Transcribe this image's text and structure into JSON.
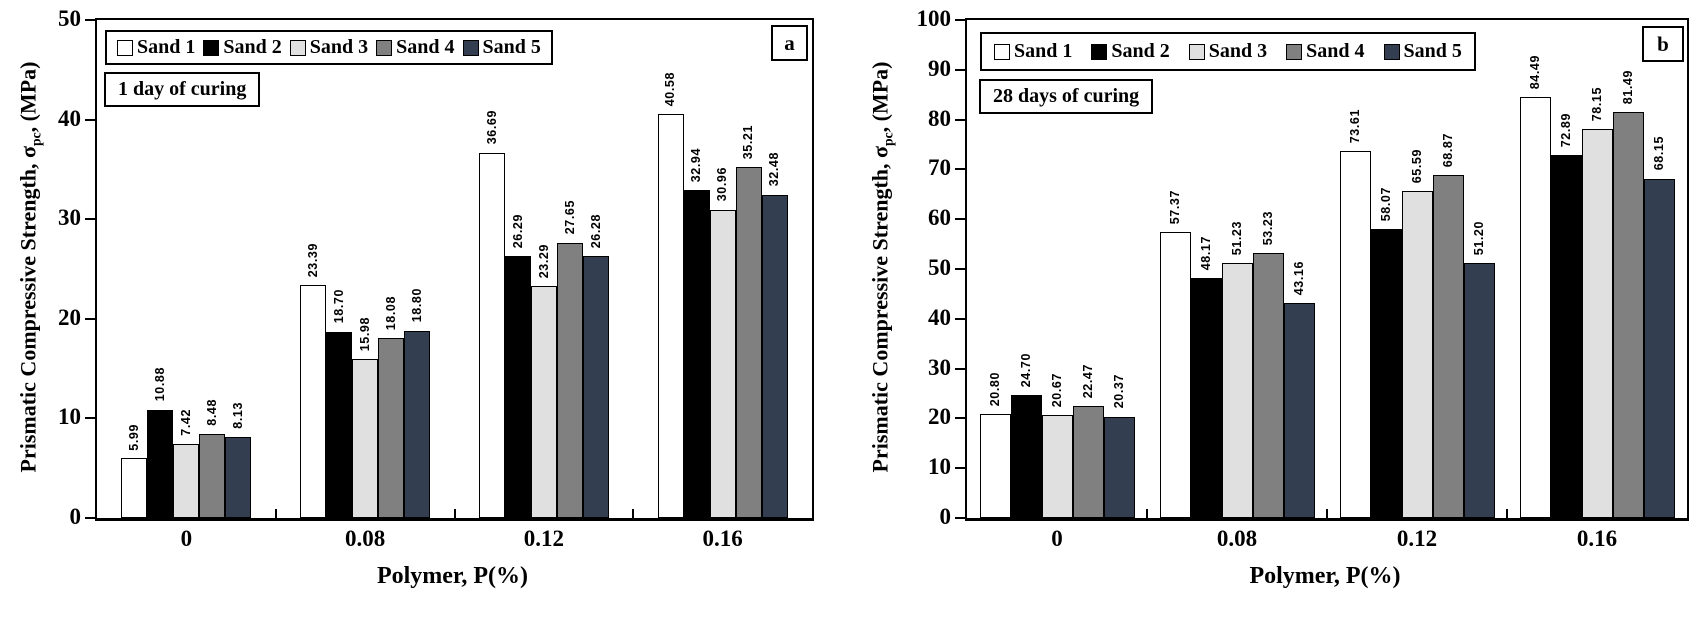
{
  "colors": {
    "sand1": "#ffffff",
    "sand2": "#000000",
    "sand3": "#e0e0e0",
    "sand4": "#808080",
    "sand5": "#333f50",
    "axis": "#000000",
    "background": "#ffffff"
  },
  "chart_data": [
    {
      "type": "bar",
      "panel_label": "a",
      "annotation": "1 day of curing",
      "xlabel": "Polymer, P(%)",
      "ylabel_full": "Prismatic Compressive Strength, σpc, (MPa)",
      "ylabel_pre": "Prismatic Compressive Strength, σ",
      "ylabel_sub": "pc",
      "ylabel_post": ", (MPa)",
      "categories": [
        "0",
        "0.08",
        "0.12",
        "0.16"
      ],
      "ylim": [
        0,
        50
      ],
      "yticks": [
        0,
        10,
        20,
        30,
        40,
        50
      ],
      "grid": false,
      "legend_position": "top-left",
      "value_label_decimals": 2,
      "series": [
        {
          "name": "Sand 1",
          "color_key": "sand1",
          "values": [
            5.99,
            23.39,
            36.69,
            40.58
          ]
        },
        {
          "name": "Sand 2",
          "color_key": "sand2",
          "values": [
            10.88,
            18.7,
            26.29,
            32.94
          ]
        },
        {
          "name": "Sand 3",
          "color_key": "sand3",
          "values": [
            7.42,
            15.98,
            23.29,
            30.96
          ]
        },
        {
          "name": "Sand 4",
          "color_key": "sand4",
          "values": [
            8.48,
            18.08,
            27.65,
            35.21
          ]
        },
        {
          "name": "Sand 5",
          "color_key": "sand5",
          "values": [
            8.13,
            18.8,
            26.28,
            32.48
          ]
        }
      ]
    },
    {
      "type": "bar",
      "panel_label": "b",
      "annotation": "28 days of curing",
      "xlabel": "Polymer, P(%)",
      "ylabel_full": "Prismatic Compressive Strength, σpc, (MPa)",
      "ylabel_pre": "Prismatic Compressive Strength, σ",
      "ylabel_sub": "pc",
      "ylabel_post": ", (MPa)",
      "categories": [
        "0",
        "0.08",
        "0.12",
        "0.16"
      ],
      "ylim": [
        0,
        100
      ],
      "yticks": [
        0,
        10,
        20,
        30,
        40,
        50,
        60,
        70,
        80,
        90,
        100
      ],
      "grid": false,
      "legend_position": "top-left",
      "value_label_decimals": 2,
      "series": [
        {
          "name": "Sand 1",
          "color_key": "sand1",
          "values": [
            20.8,
            57.37,
            73.61,
            84.49
          ]
        },
        {
          "name": "Sand 2",
          "color_key": "sand2",
          "values": [
            24.7,
            48.17,
            58.07,
            72.89
          ]
        },
        {
          "name": "Sand 3",
          "color_key": "sand3",
          "values": [
            20.67,
            51.23,
            65.59,
            78.15
          ]
        },
        {
          "name": "Sand 4",
          "color_key": "sand4",
          "values": [
            22.47,
            53.23,
            68.87,
            81.49
          ]
        },
        {
          "name": "Sand 5",
          "color_key": "sand5",
          "values": [
            20.37,
            43.16,
            51.2,
            68.15
          ]
        }
      ]
    }
  ]
}
